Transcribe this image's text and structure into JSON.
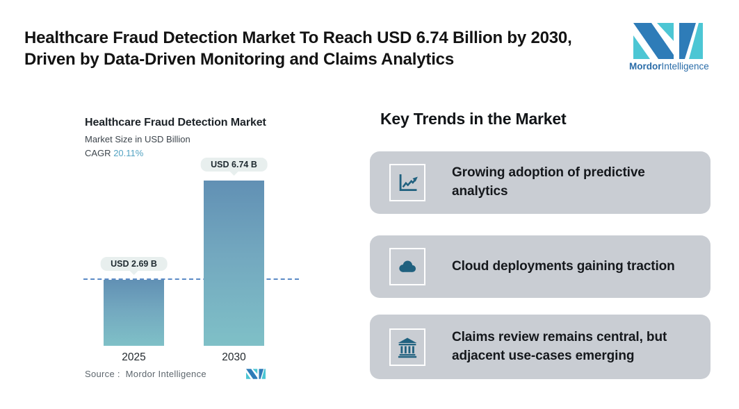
{
  "header": {
    "title_line1": "Healthcare Fraud Detection Market To Reach USD 6.74 Billion by 2030,",
    "title_line2": "Driven by Data-Driven Monitoring and Claims Analytics",
    "brand": {
      "name_bold": "Mordor",
      "name_regular": "Intelligence"
    }
  },
  "chart_data": {
    "type": "bar",
    "title": "Healthcare Fraud Detection Market",
    "subtitle": "Market Size in USD Billion",
    "cagr_label": "CAGR",
    "cagr_value": "20.11%",
    "categories": [
      "2025",
      "2030"
    ],
    "values": [
      2.69,
      6.74
    ],
    "bar_labels": [
      "USD 2.69 B",
      "USD 6.74 B"
    ],
    "ylim": [
      0,
      7.5
    ],
    "grid": false,
    "legend": false,
    "reference_line": {
      "style": "dashed",
      "value": 2.69
    },
    "source_label": "Source :",
    "source_value": "Mordor Intelligence"
  },
  "trends": {
    "heading": "Key Trends in the Market",
    "items": [
      {
        "icon": "trend-line-chart-icon",
        "text": "Growing adoption of predictive analytics"
      },
      {
        "icon": "cloud-icon",
        "text": "Cloud deployments gaining traction"
      },
      {
        "icon": "bank-building-icon",
        "text": "Claims review remains central, but adjacent use-cases emerging"
      }
    ]
  },
  "colors": {
    "bar_gradient_top": "#6190b4",
    "bar_gradient_bottom": "#7fc0c7",
    "reference_line": "#5b8ac6",
    "pill_background": "#e8efee",
    "card_background": "#c9cdd3",
    "icon_blue": "#20617f",
    "cagr_accent": "#54a3c2",
    "brand_blue": "#2e7cb8",
    "brand_teal": "#4cc6d4"
  }
}
